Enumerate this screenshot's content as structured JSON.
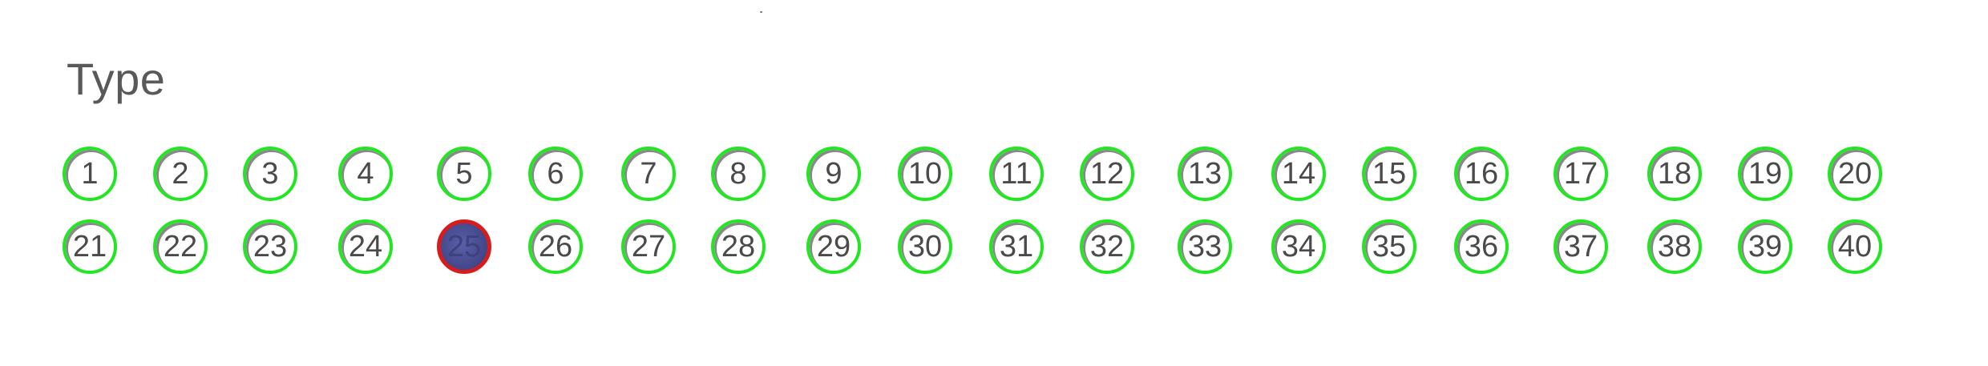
{
  "form": {
    "title": "Type"
  },
  "colors": {
    "unmarked_ring": "#22e622",
    "marked_ring": "#d81c1c",
    "marked_fill": "#474b8f"
  },
  "bubbles": {
    "row1": [
      {
        "label": "1",
        "marked": false
      },
      {
        "label": "2",
        "marked": false
      },
      {
        "label": "3",
        "marked": false
      },
      {
        "label": "4",
        "marked": false
      },
      {
        "label": "5",
        "marked": false
      },
      {
        "label": "6",
        "marked": false
      },
      {
        "label": "7",
        "marked": false
      },
      {
        "label": "8",
        "marked": false
      },
      {
        "label": "9",
        "marked": false
      },
      {
        "label": "10",
        "marked": false
      },
      {
        "label": "11",
        "marked": false
      },
      {
        "label": "12",
        "marked": false
      },
      {
        "label": "13",
        "marked": false
      },
      {
        "label": "14",
        "marked": false
      },
      {
        "label": "15",
        "marked": false
      },
      {
        "label": "16",
        "marked": false
      },
      {
        "label": "17",
        "marked": false
      },
      {
        "label": "18",
        "marked": false
      },
      {
        "label": "19",
        "marked": false
      },
      {
        "label": "20",
        "marked": false
      }
    ],
    "row2": [
      {
        "label": "21",
        "marked": false
      },
      {
        "label": "22",
        "marked": false
      },
      {
        "label": "23",
        "marked": false
      },
      {
        "label": "24",
        "marked": false
      },
      {
        "label": "25",
        "marked": true
      },
      {
        "label": "26",
        "marked": false
      },
      {
        "label": "27",
        "marked": false
      },
      {
        "label": "28",
        "marked": false
      },
      {
        "label": "29",
        "marked": false
      },
      {
        "label": "30",
        "marked": false
      },
      {
        "label": "31",
        "marked": false
      },
      {
        "label": "32",
        "marked": false
      },
      {
        "label": "33",
        "marked": false
      },
      {
        "label": "34",
        "marked": false
      },
      {
        "label": "35",
        "marked": false
      },
      {
        "label": "36",
        "marked": false
      },
      {
        "label": "37",
        "marked": false
      },
      {
        "label": "38",
        "marked": false
      },
      {
        "label": "39",
        "marked": false
      },
      {
        "label": "40",
        "marked": false
      }
    ]
  }
}
